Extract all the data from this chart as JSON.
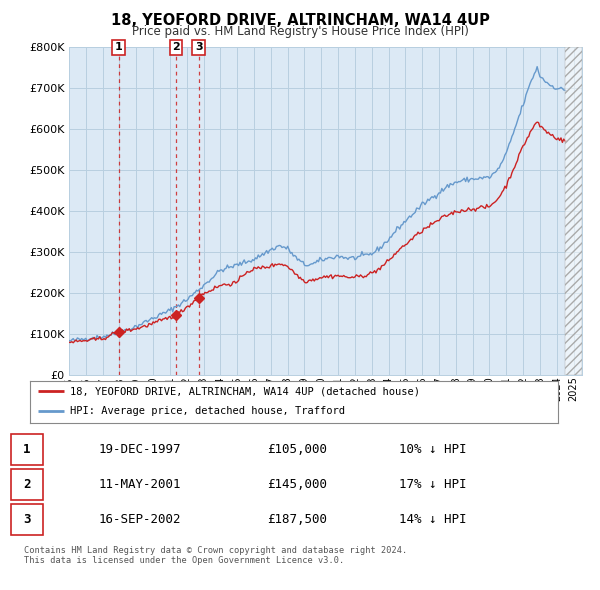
{
  "title": "18, YEOFORD DRIVE, ALTRINCHAM, WA14 4UP",
  "subtitle": "Price paid vs. HM Land Registry's House Price Index (HPI)",
  "legend_label_red": "18, YEOFORD DRIVE, ALTRINCHAM, WA14 4UP (detached house)",
  "legend_label_blue": "HPI: Average price, detached house, Trafford",
  "footer": "Contains HM Land Registry data © Crown copyright and database right 2024.\nThis data is licensed under the Open Government Licence v3.0.",
  "transactions": [
    {
      "label": "1",
      "date": "19-DEC-1997",
      "price": 105000,
      "year": 1997.96,
      "hpi_pct": "10%"
    },
    {
      "label": "2",
      "date": "11-MAY-2001",
      "price": 145000,
      "year": 2001.36,
      "hpi_pct": "17%"
    },
    {
      "label": "3",
      "date": "16-SEP-2002",
      "price": 187500,
      "year": 2002.71,
      "hpi_pct": "14%"
    }
  ],
  "table_rows": [
    [
      "1",
      "19-DEC-1997",
      "£105,000",
      "10% ↓ HPI"
    ],
    [
      "2",
      "11-MAY-2001",
      "£145,000",
      "17% ↓ HPI"
    ],
    [
      "3",
      "16-SEP-2002",
      "£187,500",
      "14% ↓ HPI"
    ]
  ],
  "ylim": [
    0,
    800000
  ],
  "xlim_start": 1995.0,
  "xlim_end": 2025.5,
  "chart_bg": "#dce9f5",
  "background_color": "#ffffff",
  "grid_color": "#b8cfe0",
  "red_line_color": "#cc2222",
  "blue_line_color": "#6699cc",
  "dashed_line_color": "#cc2222",
  "marker_color": "#cc2222"
}
